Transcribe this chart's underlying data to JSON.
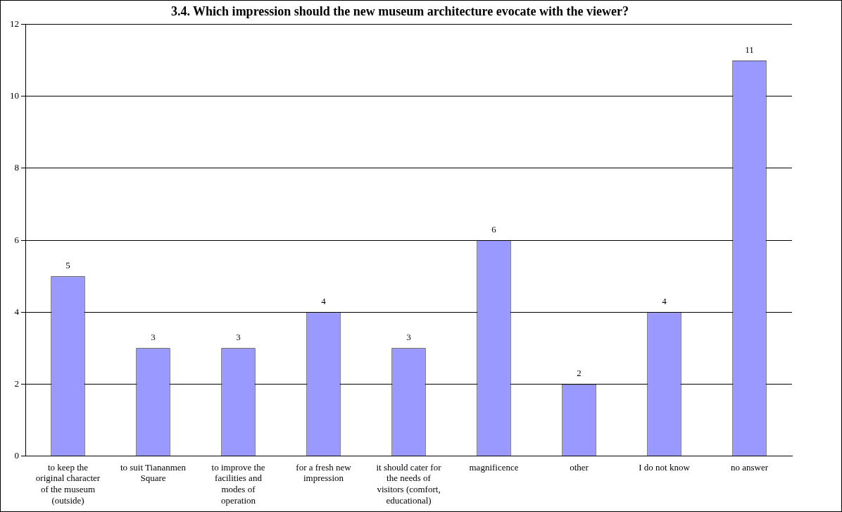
{
  "chart_data": {
    "type": "bar",
    "title": "3.4. Which impression should the new museum architecture evocate with the viewer?",
    "categories": [
      "to keep the original character of the museum (outside)",
      "to suit Tiananmen Square",
      "to improve the facilities and modes of operation",
      "for a fresh new impression",
      "it should cater for the needs of visitors (comfort, educational)",
      "magnificence",
      "other",
      "I do not know",
      "no answer"
    ],
    "values": [
      5,
      3,
      3,
      4,
      3,
      6,
      2,
      4,
      11
    ],
    "color": "#9999ff",
    "ylim": [
      0,
      12
    ],
    "yticks": [
      0,
      2,
      4,
      6,
      8,
      10,
      12
    ],
    "grid": "y",
    "data_labels": true,
    "legend": false
  }
}
